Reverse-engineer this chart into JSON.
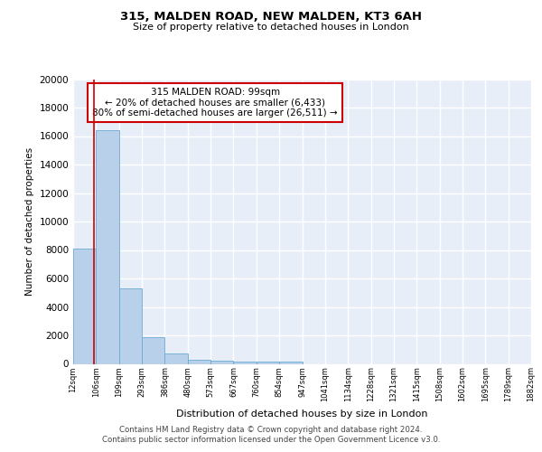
{
  "title1": "315, MALDEN ROAD, NEW MALDEN, KT3 6AH",
  "title2": "Size of property relative to detached houses in London",
  "xlabel": "Distribution of detached houses by size in London",
  "ylabel": "Number of detached properties",
  "bin_labels": [
    "12sqm",
    "106sqm",
    "199sqm",
    "293sqm",
    "386sqm",
    "480sqm",
    "573sqm",
    "667sqm",
    "760sqm",
    "854sqm",
    "947sqm",
    "1041sqm",
    "1134sqm",
    "1228sqm",
    "1321sqm",
    "1415sqm",
    "1508sqm",
    "1602sqm",
    "1695sqm",
    "1789sqm",
    "1882sqm"
  ],
  "bar_heights": [
    8100,
    16400,
    5300,
    1850,
    700,
    300,
    200,
    170,
    150,
    130,
    0,
    0,
    0,
    0,
    0,
    0,
    0,
    0,
    0,
    0
  ],
  "bar_color": "#b8d0ea",
  "bar_edge_color": "#6aaad4",
  "bg_color": "#e8eef8",
  "grid_color": "#ffffff",
  "marker_color": "#cc0000",
  "annotation_title": "315 MALDEN ROAD: 99sqm",
  "annotation_line1": "← 20% of detached houses are smaller (6,433)",
  "annotation_line2": "80% of semi-detached houses are larger (26,511) →",
  "annotation_box_color": "#ffffff",
  "annotation_box_edge": "#cc0000",
  "footer1": "Contains HM Land Registry data © Crown copyright and database right 2024.",
  "footer2": "Contains public sector information licensed under the Open Government Licence v3.0.",
  "ylim": [
    0,
    20000
  ],
  "yticks": [
    0,
    2000,
    4000,
    6000,
    8000,
    10000,
    12000,
    14000,
    16000,
    18000,
    20000
  ],
  "bin_edges": [
    12,
    106,
    199,
    293,
    386,
    480,
    573,
    667,
    760,
    854,
    947,
    1041,
    1134,
    1228,
    1321,
    1415,
    1508,
    1602,
    1695,
    1789,
    1882
  ],
  "marker_sqm": 99
}
